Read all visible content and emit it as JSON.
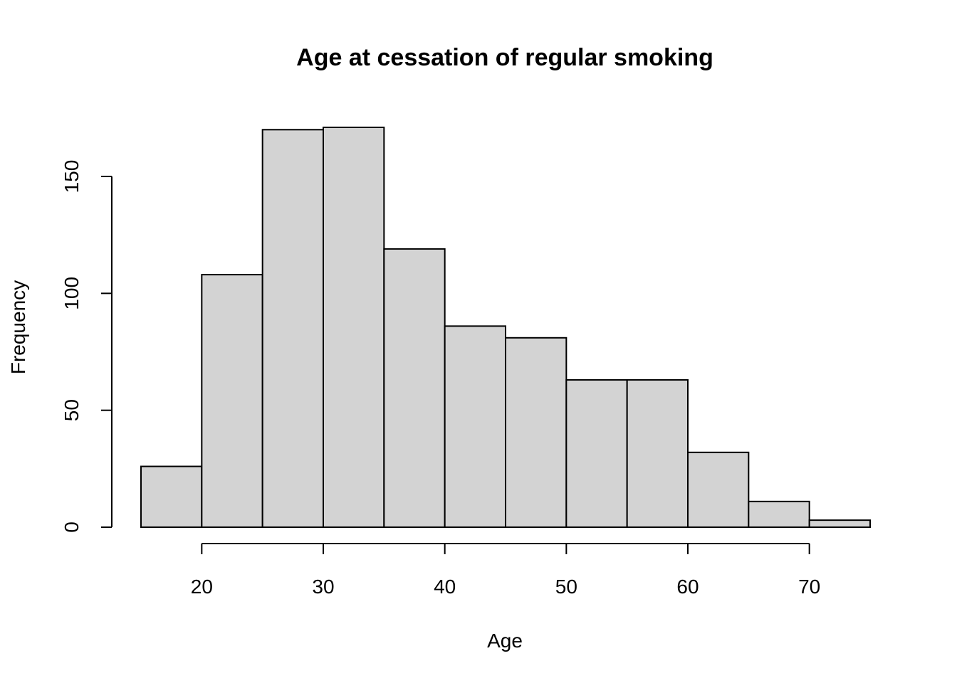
{
  "chart_data": {
    "type": "bar",
    "subtype": "histogram",
    "title": "Age at cessation of regular smoking",
    "xlabel": "Age",
    "ylabel": "Frequency",
    "bin_edges": [
      15,
      20,
      25,
      30,
      35,
      40,
      45,
      50,
      55,
      60,
      65,
      70,
      75
    ],
    "values": [
      26,
      108,
      170,
      171,
      119,
      86,
      81,
      63,
      63,
      32,
      11,
      3
    ],
    "xlim": [
      15,
      75
    ],
    "ylim": [
      0,
      171
    ],
    "x_ticks": [
      20,
      30,
      40,
      50,
      60,
      70
    ],
    "y_ticks": [
      0,
      50,
      100,
      150
    ],
    "bar_color": "#d3d3d3",
    "edge_color": "#000000",
    "grid": false,
    "legend": "none"
  }
}
